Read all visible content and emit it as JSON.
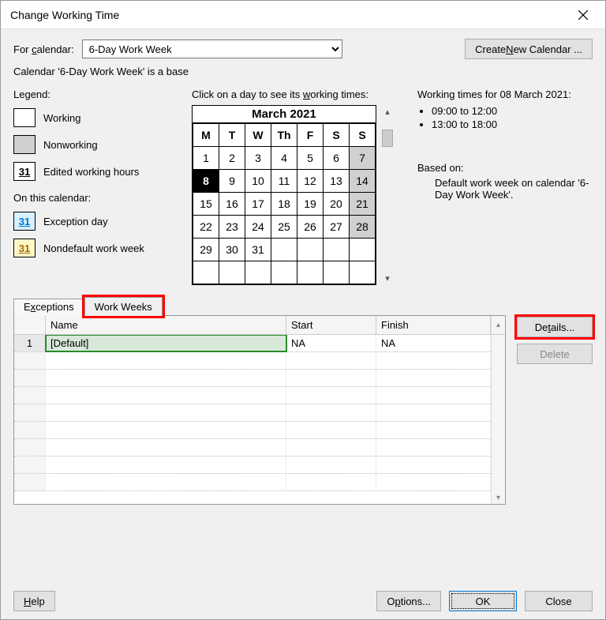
{
  "dialog": {
    "title": "Change Working Time",
    "for_calendar_label": "For calendar:",
    "for_calendar_value": "6-Day Work Week",
    "create_new_label": "Create New Calendar ...",
    "subtext": "Calendar '6-Day Work Week' is a base"
  },
  "legend": {
    "heading": "Legend:",
    "working": "Working",
    "nonworking": "Nonworking",
    "edited_num": "31",
    "edited": "Edited working hours",
    "subhead": "On this calendar:",
    "exception_num": "31",
    "exception": "Exception day",
    "nondefault_num": "31",
    "nondefault": "Nondefault work week"
  },
  "calendar": {
    "prompt": "Click on a day to see its working times:",
    "month_label": "March 2021",
    "dow": [
      "M",
      "T",
      "W",
      "Th",
      "F",
      "S",
      "S"
    ],
    "weeks": [
      [
        {
          "d": "1"
        },
        {
          "d": "2"
        },
        {
          "d": "3"
        },
        {
          "d": "4"
        },
        {
          "d": "5"
        },
        {
          "d": "6"
        },
        {
          "d": "7",
          "cls": "weekend"
        }
      ],
      [
        {
          "d": "8",
          "cls": "selected"
        },
        {
          "d": "9"
        },
        {
          "d": "10"
        },
        {
          "d": "11"
        },
        {
          "d": "12"
        },
        {
          "d": "13"
        },
        {
          "d": "14",
          "cls": "weekend"
        }
      ],
      [
        {
          "d": "15"
        },
        {
          "d": "16"
        },
        {
          "d": "17"
        },
        {
          "d": "18"
        },
        {
          "d": "19"
        },
        {
          "d": "20"
        },
        {
          "d": "21",
          "cls": "weekend"
        }
      ],
      [
        {
          "d": "22"
        },
        {
          "d": "23"
        },
        {
          "d": "24"
        },
        {
          "d": "25"
        },
        {
          "d": "26"
        },
        {
          "d": "27"
        },
        {
          "d": "28",
          "cls": "weekend"
        }
      ],
      [
        {
          "d": "29"
        },
        {
          "d": "30"
        },
        {
          "d": "31"
        },
        {
          "d": ""
        },
        {
          "d": ""
        },
        {
          "d": ""
        },
        {
          "d": ""
        }
      ],
      [
        {
          "d": ""
        },
        {
          "d": ""
        },
        {
          "d": ""
        },
        {
          "d": ""
        },
        {
          "d": ""
        },
        {
          "d": ""
        },
        {
          "d": ""
        }
      ]
    ]
  },
  "worktimes": {
    "heading": "Working times for 08 March 2021:",
    "slots": [
      "09:00 to 12:00",
      "13:00 to 18:00"
    ],
    "based_label": "Based on:",
    "based_text": "Default work week on calendar '6-Day Work Week'."
  },
  "tabs": {
    "exceptions": "Exceptions",
    "workweeks": "Work Weeks"
  },
  "grid": {
    "col_name": "Name",
    "col_start": "Start",
    "col_finish": "Finish",
    "rows": [
      {
        "n": "1",
        "name": "[Default]",
        "start": "NA",
        "finish": "NA"
      }
    ],
    "blank_rows": 8
  },
  "sidebtns": {
    "details": "Details...",
    "delete": "Delete"
  },
  "footer": {
    "help": "Help",
    "options": "Options...",
    "ok": "OK",
    "close": "Close"
  },
  "colors": {
    "highlight_red": "#ff0000",
    "focus_blue": "#0078d7"
  }
}
